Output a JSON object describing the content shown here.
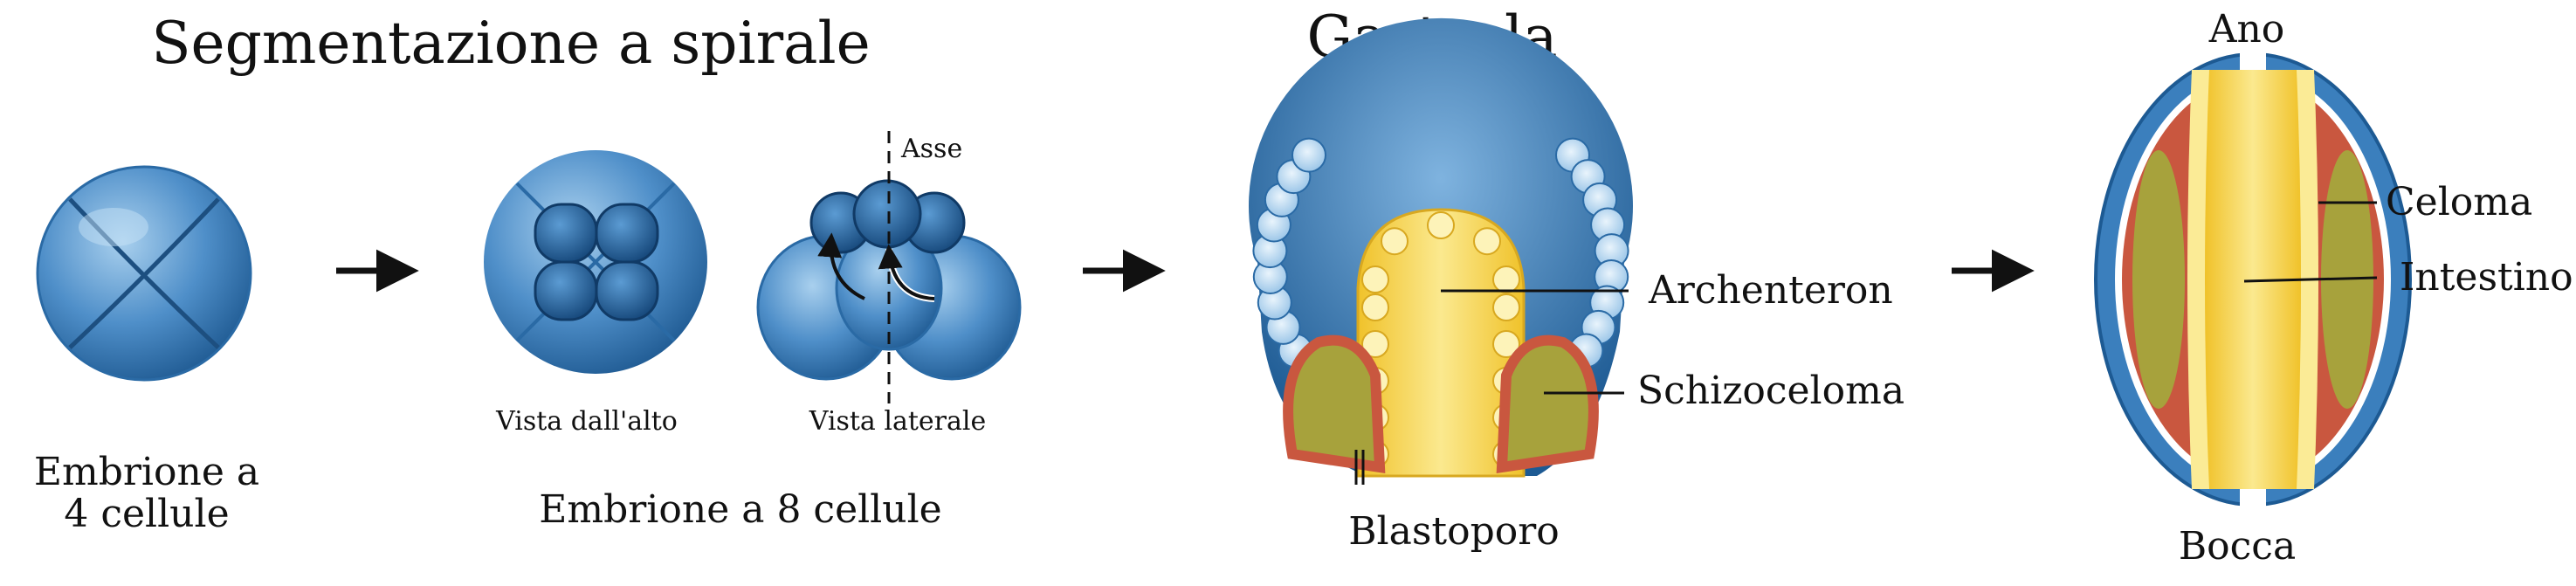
{
  "titles": {
    "segmentation": "Segmentazione a spirale",
    "gastrula": "Gastrula"
  },
  "labels": {
    "embryo4_line1": "Embrione a",
    "embryo4_line2": "4 cellule",
    "top_view": "Vista dall'alto",
    "side_view": "Vista laterale",
    "axis": "Asse",
    "embryo8": "Embrione a 8 cellule",
    "archenteron": "Archenteron",
    "schizocoel": "Schizoceloma",
    "blastopore": "Blastoporo",
    "anus": "Ano",
    "coelom": "Celoma",
    "intestine": "Intestino",
    "mouth": "Bocca"
  },
  "colors": {
    "blue_dark": "#1d5a93",
    "blue_mid": "#3b7fbd",
    "blue_light": "#8fbfe6",
    "yellow": "#f3cf3a",
    "yellow_light": "#fbeb96",
    "red": "#c9573f",
    "olive": "#a7a23c",
    "arrow": "#111111"
  }
}
